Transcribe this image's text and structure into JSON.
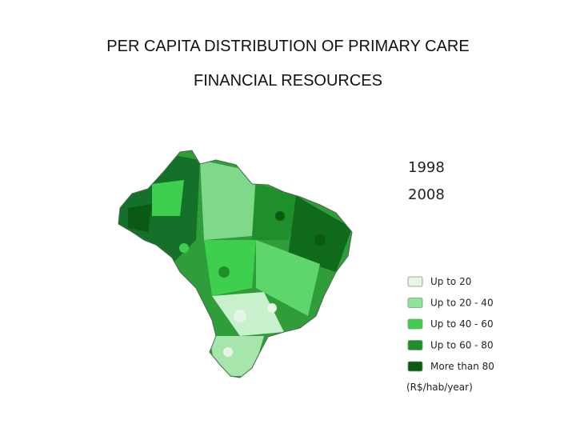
{
  "header": {
    "title_lines": [
      "PER CAPITA DISTRIBUTION OF PRIMARY CARE",
      "FINANCIAL RESOURCES"
    ]
  },
  "years": [
    "1998",
    "2008"
  ],
  "legend": {
    "items": [
      {
        "label": "Up to 20",
        "color": "#e6f6e6"
      },
      {
        "label": "Up to 20 - 40",
        "color": "#8fe39a"
      },
      {
        "label": "Up to 40 - 60",
        "color": "#3fcf4f"
      },
      {
        "label": "Up to  60 - 80",
        "color": "#1e8f2a"
      },
      {
        "label": "More than 80",
        "color": "#0b5a14"
      }
    ],
    "unit": "(R$/hab/year)"
  }
}
